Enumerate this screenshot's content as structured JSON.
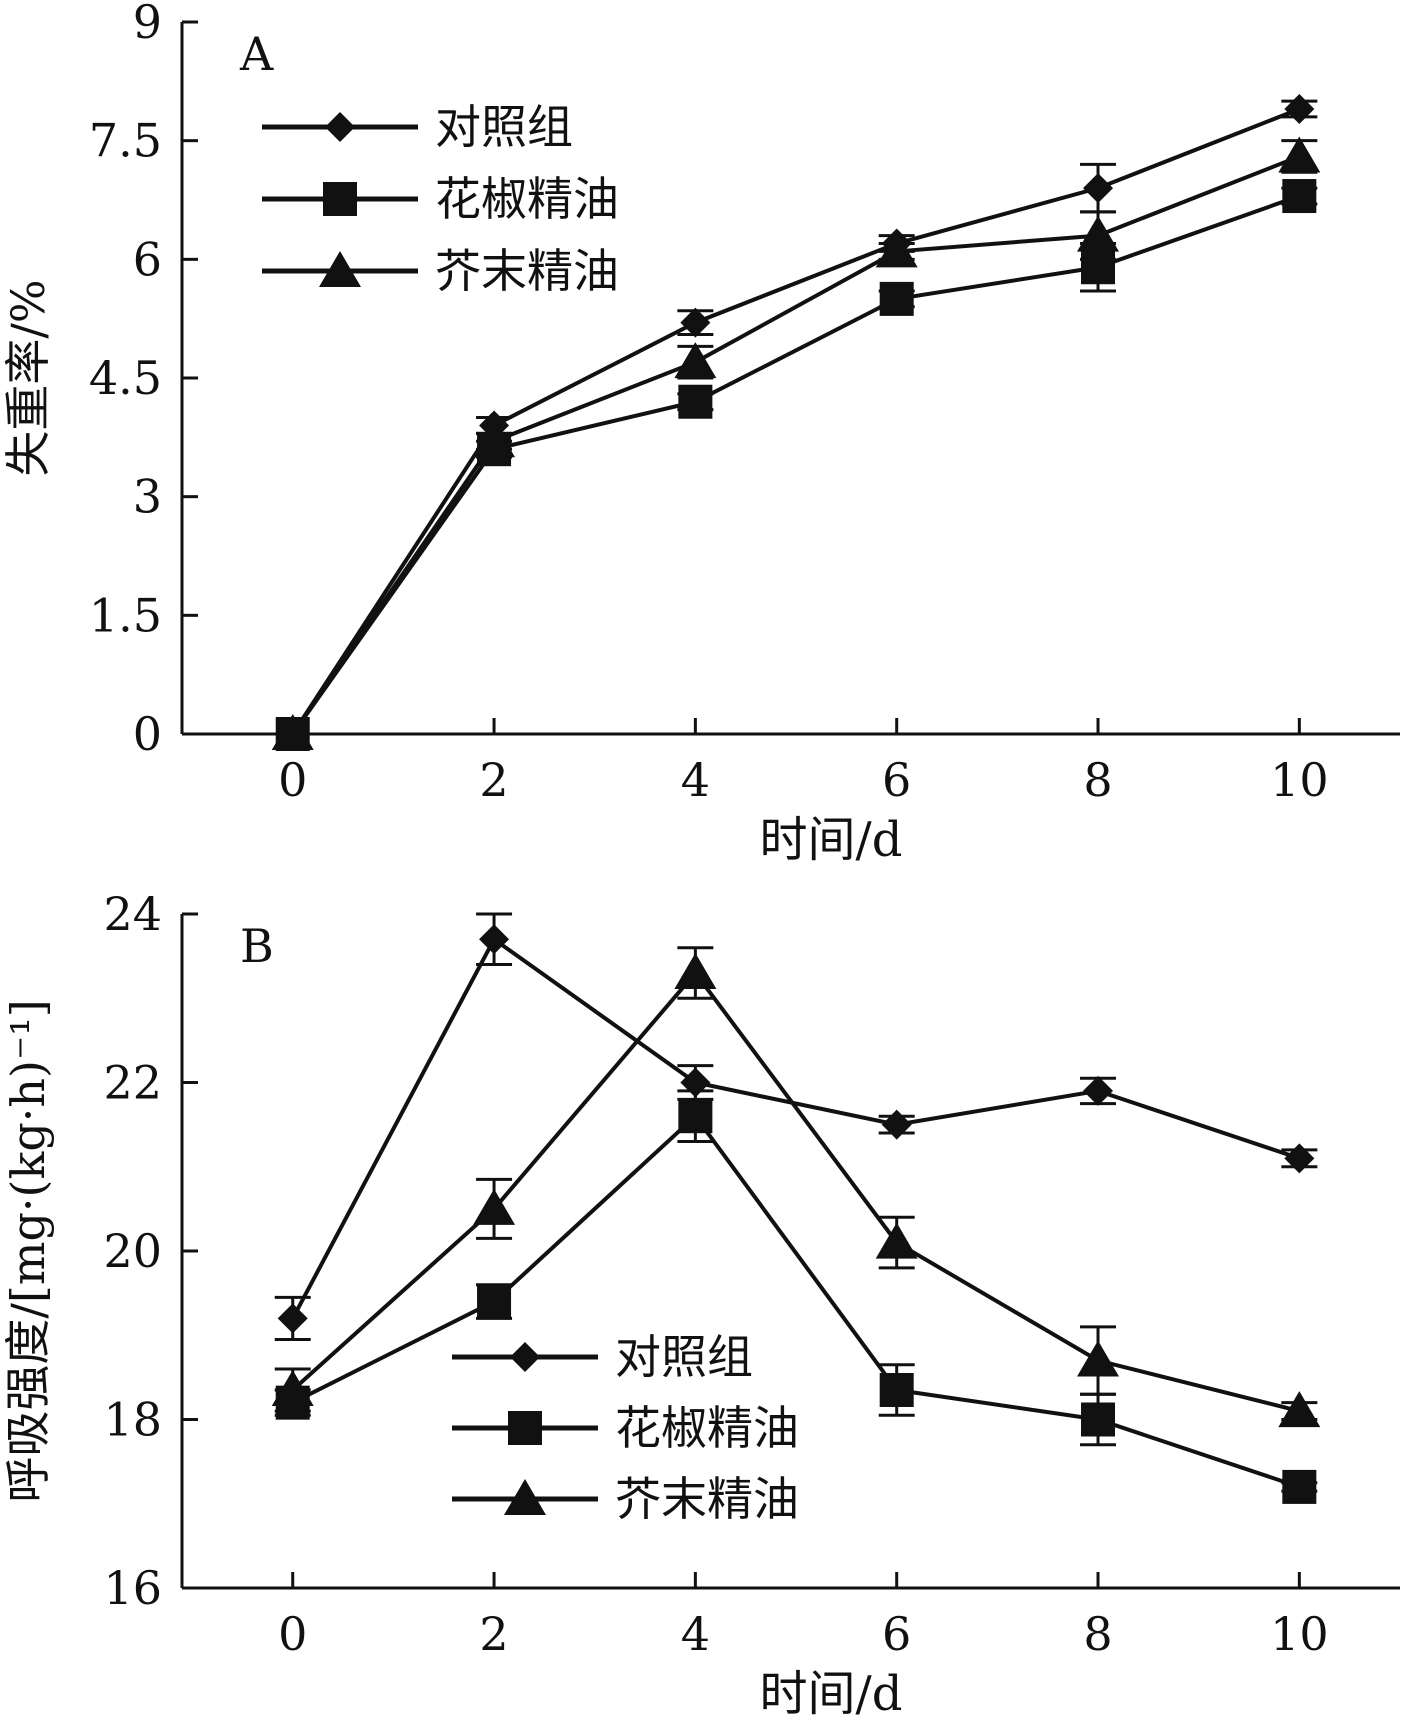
{
  "chart_data": [
    {
      "panel_label": "A",
      "type": "line",
      "xlabel": "时间/d",
      "ylabel": "失重率/%",
      "x": [
        0,
        2,
        4,
        6,
        8,
        10
      ],
      "xticks": [
        "0",
        "2",
        "4",
        "6",
        "8",
        "10"
      ],
      "xlim": [
        -1.1,
        11
      ],
      "ylim": [
        0,
        9
      ],
      "yticks": [
        "0",
        "1.5",
        "3",
        "4.5",
        "6",
        "7.5",
        "9"
      ],
      "legend_position": "top-left",
      "series": [
        {
          "name": "对照组",
          "marker": "diamond",
          "values": [
            0,
            3.9,
            5.2,
            6.2,
            6.9,
            7.9
          ],
          "errors": [
            0,
            0.1,
            0.15,
            0.1,
            0.3,
            0.1
          ]
        },
        {
          "name": "花椒精油",
          "marker": "square",
          "values": [
            0,
            3.6,
            4.2,
            5.5,
            5.9,
            6.8
          ],
          "errors": [
            0,
            0.1,
            0.1,
            0.1,
            0.3,
            0.1
          ]
        },
        {
          "name": "芥末精油",
          "marker": "triangle",
          "values": [
            0,
            3.7,
            4.7,
            6.1,
            6.3,
            7.3
          ],
          "errors": [
            0,
            0.1,
            0.2,
            0.1,
            0.3,
            0.2
          ]
        }
      ]
    },
    {
      "panel_label": "B",
      "type": "line",
      "xlabel": "时间/d",
      "ylabel": "呼吸强度/[mg·(kg·h)⁻¹]",
      "x": [
        0,
        2,
        4,
        6,
        8,
        10
      ],
      "xticks": [
        "0",
        "2",
        "4",
        "6",
        "8",
        "10"
      ],
      "xlim": [
        -1.1,
        11
      ],
      "ylim": [
        16,
        24
      ],
      "yticks": [
        "16",
        "18",
        "20",
        "22",
        "24"
      ],
      "legend_position": "lower-center",
      "series": [
        {
          "name": "对照组",
          "marker": "diamond",
          "values": [
            19.2,
            23.7,
            22.0,
            21.5,
            21.9,
            21.1
          ],
          "errors": [
            0.25,
            0.3,
            0.2,
            0.1,
            0.15,
            0.1
          ]
        },
        {
          "name": "花椒精油",
          "marker": "square",
          "values": [
            18.2,
            19.4,
            21.6,
            18.35,
            18.0,
            17.2
          ],
          "errors": [
            0.15,
            0.2,
            0.3,
            0.3,
            0.3,
            0.05
          ]
        },
        {
          "name": "芥末精油",
          "marker": "triangle",
          "values": [
            18.35,
            20.5,
            23.3,
            20.1,
            18.7,
            18.1
          ],
          "errors": [
            0.25,
            0.35,
            0.3,
            0.3,
            0.4,
            0.1
          ]
        }
      ]
    }
  ]
}
